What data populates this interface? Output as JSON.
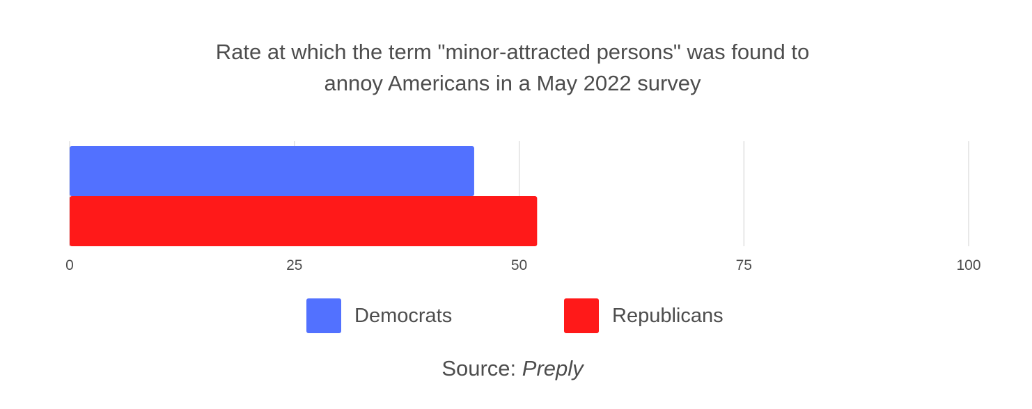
{
  "chart_data": {
    "type": "bar",
    "orientation": "horizontal",
    "title_lines": [
      "Rate at which the term \"minor-attracted persons\" was found to",
      "annoy Americans in a May 2022 survey"
    ],
    "categories": [
      ""
    ],
    "series": [
      {
        "name": "Democrats",
        "values": [
          45
        ],
        "color": "#5271ff"
      },
      {
        "name": "Republicans",
        "values": [
          52
        ],
        "color": "#ff1919"
      }
    ],
    "xlim": [
      0,
      100
    ],
    "xticks": [
      0,
      25,
      50,
      75,
      100
    ],
    "xtick_labels": [
      "0",
      "25",
      "50",
      "75",
      "100"
    ],
    "grid": true,
    "legend_position": "bottom",
    "source_label": "Source:",
    "source_name": "Preply"
  }
}
